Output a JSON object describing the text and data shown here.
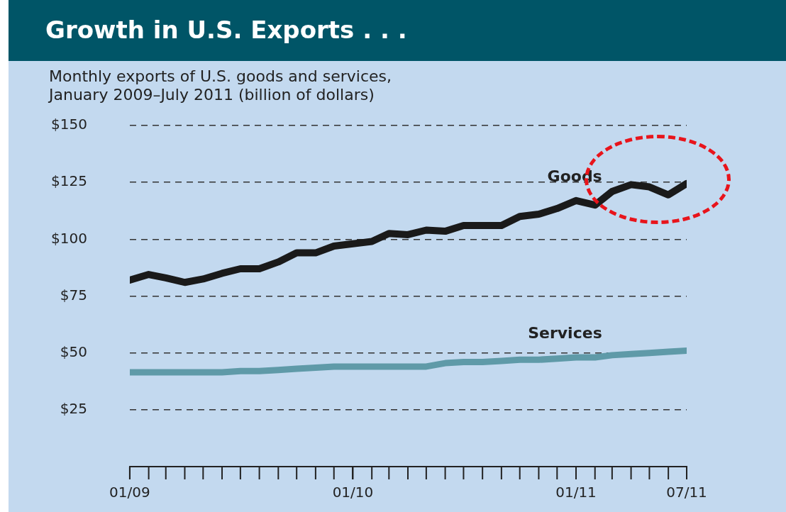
{
  "chart_data": {
    "type": "line",
    "title": "Growth in U.S. Exports . . .",
    "subtitle": "Monthly exports of U.S. goods and services,\nJanuary 2009–July 2011 (billion of dollars)",
    "x": [
      "2009-01",
      "2009-02",
      "2009-03",
      "2009-04",
      "2009-05",
      "2009-06",
      "2009-07",
      "2009-08",
      "2009-09",
      "2009-10",
      "2009-11",
      "2009-12",
      "2010-01",
      "2010-02",
      "2010-03",
      "2010-04",
      "2010-05",
      "2010-06",
      "2010-07",
      "2010-08",
      "2010-09",
      "2010-10",
      "2010-11",
      "2010-12",
      "2011-01",
      "2011-02",
      "2011-03",
      "2011-04",
      "2011-05",
      "2011-06",
      "2011-07"
    ],
    "series": [
      {
        "name": "Goods",
        "color": "#1a1a1a",
        "values": [
          82,
          84.5,
          83,
          81,
          82.5,
          85,
          87,
          87,
          90,
          94,
          94,
          97,
          98,
          99,
          102.5,
          102,
          104,
          103.5,
          106,
          106,
          106,
          110,
          111,
          113.5,
          117,
          115,
          121,
          124,
          123,
          119.5,
          124.5
        ]
      },
      {
        "name": "Services",
        "color": "#5f9aa8",
        "values": [
          41.5,
          41.5,
          41.5,
          41.5,
          41.5,
          41.5,
          42,
          42,
          42.5,
          43,
          43.5,
          44,
          44,
          44,
          44,
          44,
          44,
          45.5,
          46,
          46,
          46.5,
          47,
          47,
          47.5,
          48,
          48,
          49,
          49.5,
          50,
          50.5,
          51
        ]
      }
    ],
    "xlim": [
      "2009-01",
      "2011-07"
    ],
    "xticks": [
      {
        "value": "2009-01",
        "label": "01/09"
      },
      {
        "value": "2010-01",
        "label": "01/10"
      },
      {
        "value": "2011-01",
        "label": "01/11"
      },
      {
        "value": "2011-07",
        "label": "07/11"
      }
    ],
    "ylim": [
      0,
      150
    ],
    "yticks": [
      {
        "value": 25,
        "label": "$25"
      },
      {
        "value": 50,
        "label": "$50"
      },
      {
        "value": 75,
        "label": "$75"
      },
      {
        "value": 100,
        "label": "$100"
      },
      {
        "value": 125,
        "label": "$125"
      },
      {
        "value": 150,
        "label": "$150"
      }
    ],
    "grid": "y",
    "legend": false,
    "marker": "none",
    "line_style": "solid"
  }
}
